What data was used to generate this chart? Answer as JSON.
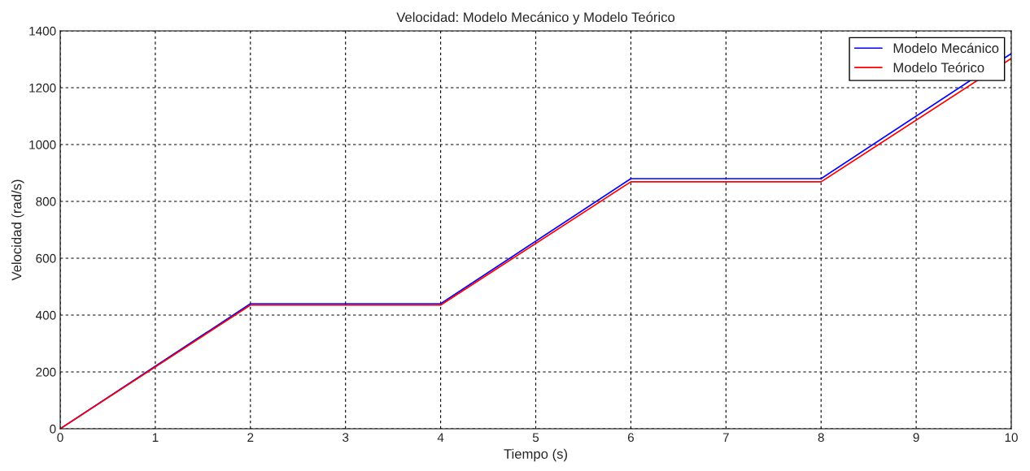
{
  "chart_data": {
    "type": "line",
    "title": "Velocidad: Modelo Mecánico y Modelo Teórico",
    "xlabel": "Tiempo (s)",
    "ylabel": "Velocidad (rad/s)",
    "series": [
      {
        "name": "Modelo Mecánico",
        "color": "#0000ff",
        "x": [
          0,
          2,
          4,
          6,
          8,
          10
        ],
        "values": [
          0,
          440,
          440,
          880,
          880,
          1320
        ]
      },
      {
        "name": "Modelo Teórico",
        "color": "#ff0000",
        "x": [
          0,
          2,
          4,
          6,
          8,
          10
        ],
        "values": [
          0,
          435,
          435,
          869,
          869,
          1303
        ]
      }
    ],
    "xlim": [
      0,
      10
    ],
    "xticks": [
      0,
      1,
      2,
      3,
      4,
      5,
      6,
      7,
      8,
      9,
      10
    ],
    "ylim": [
      0,
      1400
    ],
    "yticks": [
      0,
      200,
      400,
      600,
      800,
      1000,
      1200,
      1400
    ],
    "grid": true,
    "legend": "top right",
    "line_style": "solid",
    "marker": "none"
  }
}
